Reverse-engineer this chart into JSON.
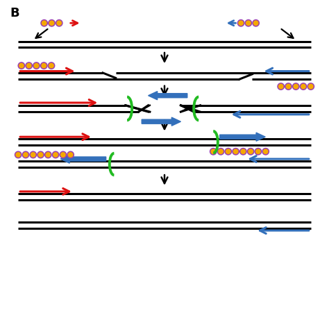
{
  "bg_color": "#ffffff",
  "fig_w": 4.74,
  "fig_h": 4.74,
  "dpi": 100,
  "orange_color": "#F5A800",
  "orange_outline": "#9B40B0",
  "red_color": "#DD1111",
  "blue_color": "#3370BB",
  "green_color": "#22BB22",
  "black_color": "#000000",
  "line_lw": 2.2,
  "bead_r": 0.1,
  "bead_sp": 0.23
}
